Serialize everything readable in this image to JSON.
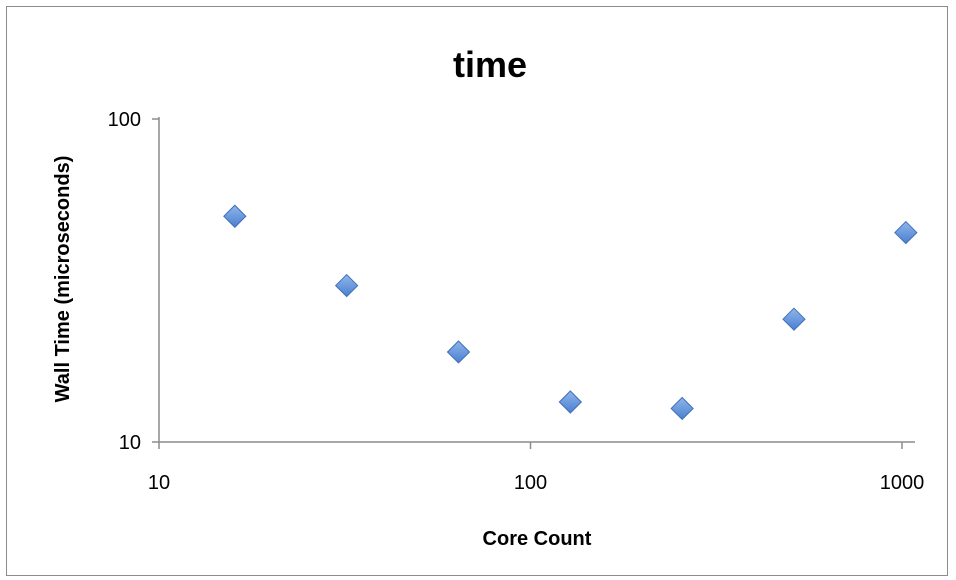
{
  "chart_data": {
    "type": "scatter",
    "title": "time",
    "xlabel": "Core Count",
    "ylabel": "Wall Time (microseconds)",
    "x_scale": "log",
    "y_scale": "log",
    "xlim": [
      10,
      1000
    ],
    "ylim": [
      10,
      100
    ],
    "x_ticks": [
      10,
      100,
      1000
    ],
    "y_ticks": [
      10,
      100
    ],
    "grid": false,
    "legend": "none",
    "marker": "diamond",
    "marker_color": "#5b8ed6",
    "series": [
      {
        "x": [
          16,
          32,
          64,
          128,
          256,
          512,
          1024
        ],
        "y": [
          50,
          30.5,
          19,
          13.3,
          12.7,
          24,
          44.5
        ]
      }
    ]
  }
}
